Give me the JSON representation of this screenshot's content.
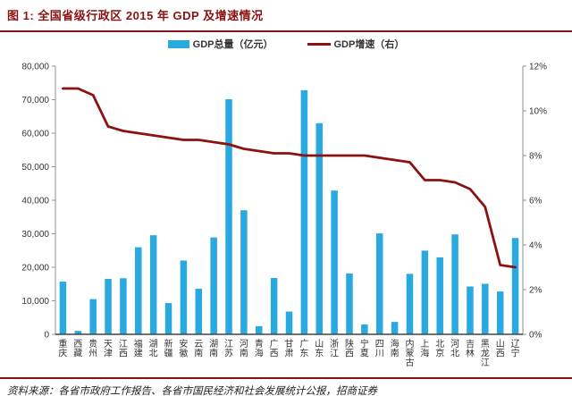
{
  "figure": {
    "title": "图 1:  全国省级行政区 2015 年 GDP 及增速情况",
    "source": "资料来源：各省市政府工作报告、各省市国民经济和社会发展统计公报，招商证券"
  },
  "colors": {
    "accent_red": "#8a1210",
    "bar_blue": "#29a9e0",
    "axis_line": "#8f8f8f",
    "baseline": "#444444",
    "axis_text": "#333333"
  },
  "chart_data": {
    "type": "bar",
    "title": "全国省级行政区 2015 年 GDP 及增速情况",
    "xlabel": "",
    "ylabel": "",
    "grid": false,
    "legend_position": "top-center",
    "categories": [
      "重庆",
      "西藏",
      "贵州",
      "天津",
      "江西",
      "福建",
      "湖北",
      "新疆",
      "安徽",
      "云南",
      "湖南",
      "江苏",
      "河南",
      "青海",
      "广西",
      "甘肃",
      "广东",
      "山东",
      "浙江",
      "陕西",
      "宁夏",
      "四川",
      "海南",
      "内蒙古",
      "上海",
      "北京",
      "河北",
      "吉林",
      "黑龙江",
      "山西",
      "辽宁"
    ],
    "series": [
      {
        "name": "GDP总量",
        "legend": "GDP总量（亿元）",
        "type": "bar",
        "axis": "left",
        "color": "#29a9e0",
        "values": [
          15720,
          1026,
          10503,
          16538,
          16724,
          25980,
          29550,
          9325,
          22006,
          13619,
          28902,
          70116,
          37010,
          2417,
          16803,
          6790,
          72813,
          63002,
          42887,
          18172,
          2912,
          30103,
          3703,
          18033,
          24965,
          22969,
          29806,
          14274,
          15084,
          12766,
          28743
        ]
      },
      {
        "name": "GDP增速",
        "legend": "GDP增速（右）",
        "type": "line",
        "axis": "right",
        "color": "#8a1210",
        "values": [
          11.0,
          11.0,
          10.7,
          9.3,
          9.1,
          9.0,
          8.9,
          8.8,
          8.7,
          8.7,
          8.6,
          8.5,
          8.3,
          8.2,
          8.1,
          8.1,
          8.0,
          8.0,
          8.0,
          8.0,
          8.0,
          7.9,
          7.8,
          7.7,
          6.9,
          6.9,
          6.8,
          6.5,
          5.7,
          3.1,
          3.0
        ]
      }
    ],
    "left_axis": {
      "min": 0,
      "max": 80000,
      "tick_labels": [
        "0",
        "10,000",
        "20,000",
        "30,000",
        "40,000",
        "50,000",
        "60,000",
        "70,000",
        "80,000"
      ]
    },
    "right_axis": {
      "min": 0,
      "max": 12,
      "tick_labels": [
        "0%",
        "2%",
        "4%",
        "6%",
        "8%",
        "10%",
        "12%"
      ]
    }
  }
}
